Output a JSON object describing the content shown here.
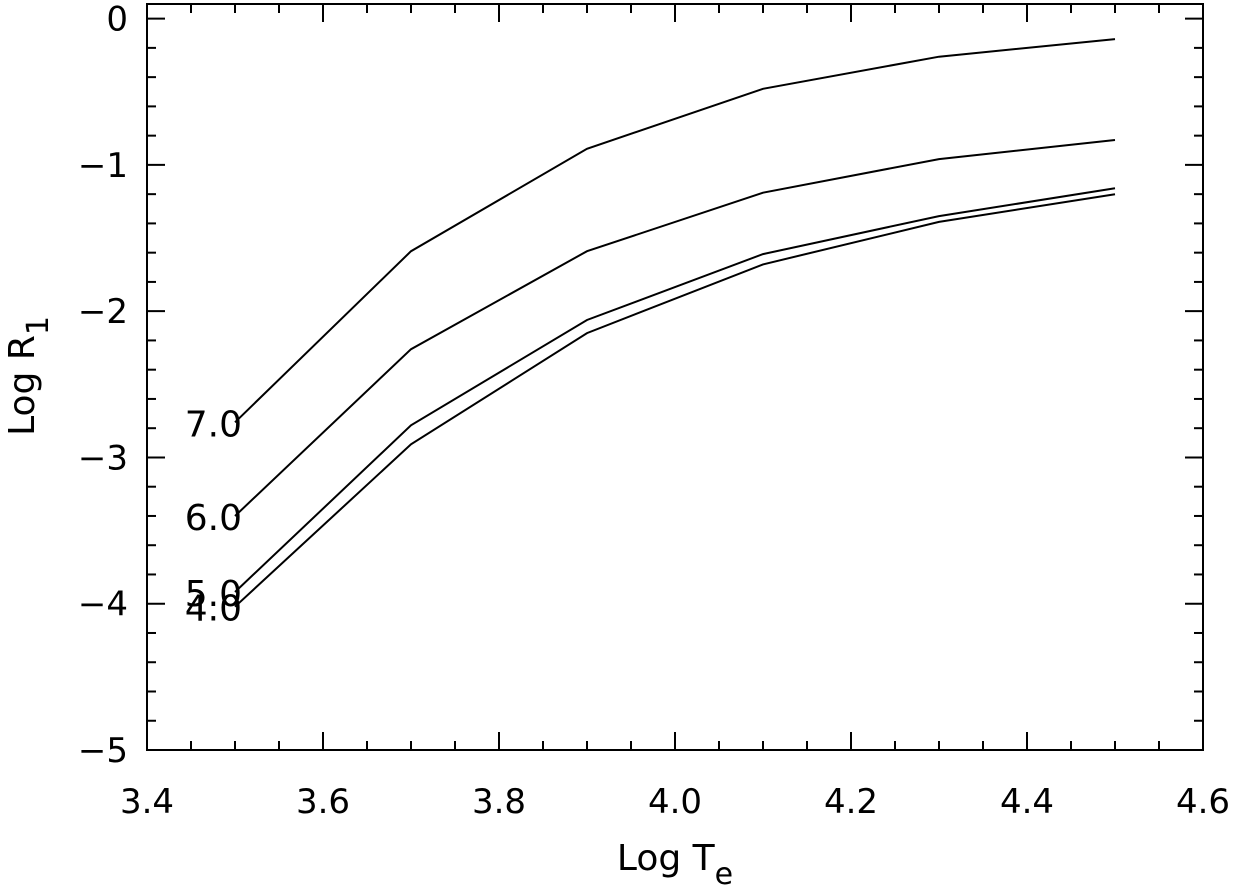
{
  "chart_data": {
    "type": "line",
    "xlabel": "Log T",
    "xlabel_sub": "e",
    "ylabel": "Log R",
    "ylabel_sub": "1",
    "xlim": [
      3.4,
      4.6
    ],
    "ylim": [
      -5,
      0.1
    ],
    "xticks": [
      3.4,
      3.6,
      3.8,
      4.0,
      4.2,
      4.4,
      4.6
    ],
    "xtick_labels": [
      "3.4",
      "3.6",
      "3.8",
      "4.0",
      "4.2",
      "4.4",
      "4.6"
    ],
    "yticks": [
      0,
      -1,
      -2,
      -3,
      -4,
      -5
    ],
    "ytick_labels": [
      "0",
      "−1",
      "−2",
      "−3",
      "−4",
      "−5"
    ],
    "grid": false,
    "x": [
      3.5,
      3.7,
      3.9,
      4.1,
      4.3,
      4.5
    ],
    "series": [
      {
        "name": "7.0",
        "values": [
          -2.76,
          -1.59,
          -0.89,
          -0.48,
          -0.26,
          -0.14
        ]
      },
      {
        "name": "6.0",
        "values": [
          -3.4,
          -2.26,
          -1.59,
          -1.19,
          -0.96,
          -0.83
        ]
      },
      {
        "name": "5.0",
        "values": [
          -3.92,
          -2.78,
          -2.06,
          -1.61,
          -1.35,
          -1.16
        ]
      },
      {
        "name": "4.0",
        "values": [
          -4.02,
          -2.91,
          -2.15,
          -1.68,
          -1.39,
          -1.2
        ]
      }
    ]
  }
}
